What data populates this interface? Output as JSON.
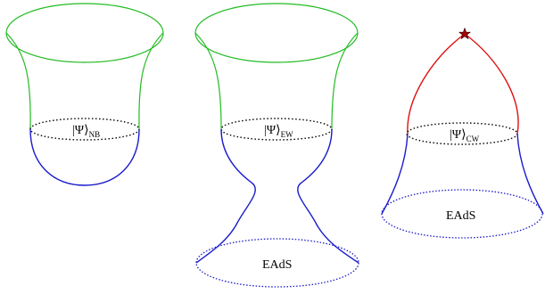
{
  "figures": [
    {
      "state_symbol": "|Ψ⟩",
      "state_subscript": "NB"
    },
    {
      "state_symbol": "|Ψ⟩",
      "state_subscript": "EW",
      "bottom_label": "EAdS"
    },
    {
      "state_symbol": "|Ψ⟩",
      "state_subscript": "CW",
      "bottom_label": "EAdS"
    }
  ],
  "colors": {
    "boundary_green": "#22bb22",
    "bulk_blue": "#1a1acc",
    "red_segment": "#dd1111",
    "star": "#aa0000",
    "slice_black": "#000000"
  }
}
